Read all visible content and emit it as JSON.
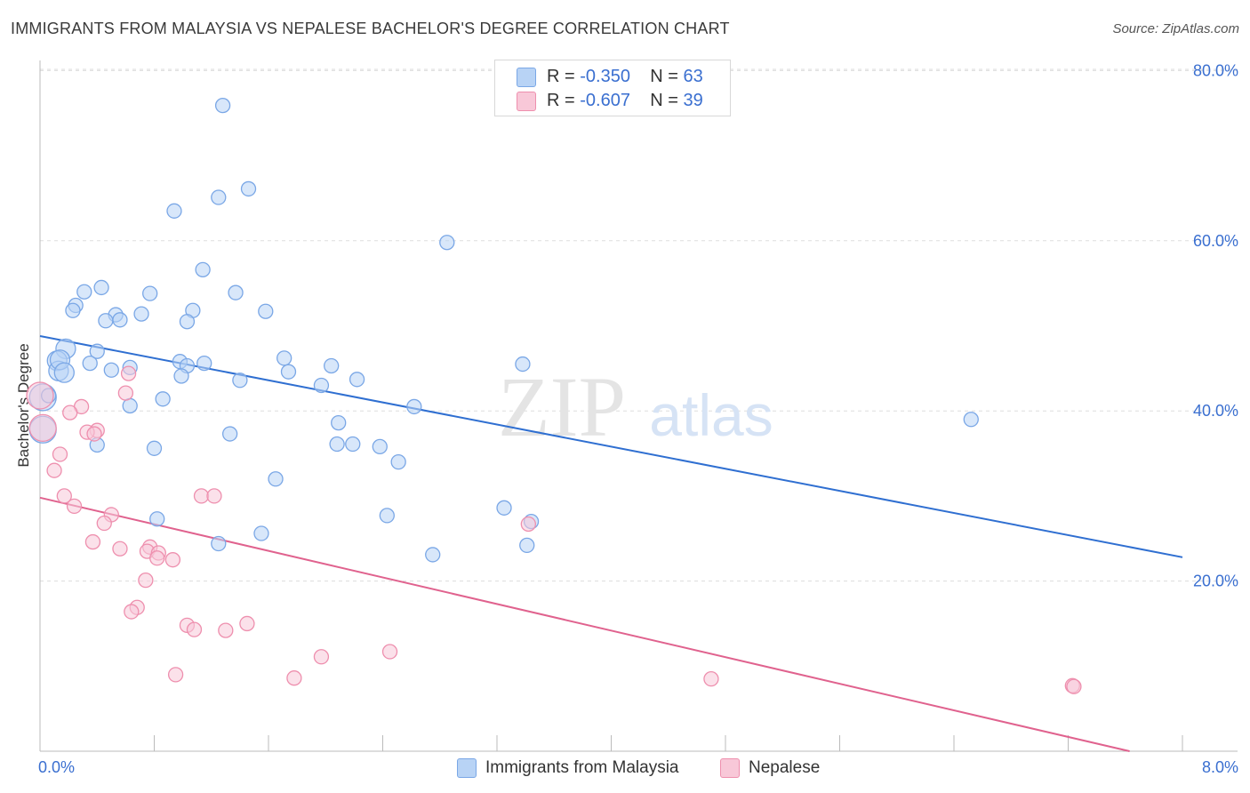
{
  "title": "IMMIGRANTS FROM MALAYSIA VS NEPALESE BACHELOR'S DEGREE CORRELATION CHART",
  "source": "Source: ZipAtlas.com",
  "watermark": {
    "zip": "ZIP",
    "atlas": "atlas"
  },
  "colors": {
    "blue_fill": "#b8d3f5",
    "blue_stroke": "#7aa7e6",
    "blue_line": "#2f6fd1",
    "pink_fill": "#f8c8d8",
    "pink_stroke": "#ee8fae",
    "pink_line": "#e0628e",
    "tick_label": "#3a6fd0",
    "grid": "#dddddd"
  },
  "legend_top": [
    {
      "r_label": "R = ",
      "r_value": "-0.350",
      "n_label": "N = ",
      "n_value": "63",
      "color": "#b8d3f5",
      "border": "#7aa7e6"
    },
    {
      "r_label": "R = ",
      "r_value": "-0.607",
      "n_label": "N = ",
      "n_value": "39",
      "color": "#f8c8d8",
      "border": "#ee8fae"
    }
  ],
  "legend_bottom": [
    {
      "label": "Immigrants from Malaysia",
      "color": "#b8d3f5",
      "border": "#7aa7e6"
    },
    {
      "label": "Nepalese",
      "color": "#f8c8d8",
      "border": "#ee8fae"
    }
  ],
  "chart_data": {
    "type": "scatter",
    "title": "IMMIGRANTS FROM MALAYSIA VS NEPALESE BACHELOR'S DEGREE CORRELATION CHART",
    "xlabel": "",
    "ylabel": "Bachelor's Degree",
    "xlim": [
      0,
      8.0
    ],
    "ylim": [
      0,
      80.0
    ],
    "x_tick_labels": [
      "0.0%",
      "8.0%"
    ],
    "y_ticks": [
      20,
      40,
      60,
      80
    ],
    "y_tick_labels": [
      "20.0%",
      "40.0%",
      "60.0%",
      "80.0%"
    ],
    "grid": true,
    "legend_position": "top-center",
    "series": [
      {
        "name": "Immigrants from Malaysia",
        "color": "#7aa7e6",
        "trend": {
          "x": [
            0,
            8.0
          ],
          "y": [
            48.8,
            22.8
          ]
        },
        "points": [
          [
            1.28,
            75.9
          ],
          [
            1.46,
            66.1
          ],
          [
            1.25,
            65.1
          ],
          [
            0.94,
            63.5
          ],
          [
            2.85,
            59.8
          ],
          [
            1.14,
            56.6
          ],
          [
            0.43,
            54.5
          ],
          [
            0.31,
            54.0
          ],
          [
            0.77,
            53.8
          ],
          [
            1.37,
            53.9
          ],
          [
            0.25,
            52.4
          ],
          [
            0.23,
            51.8
          ],
          [
            0.53,
            51.3
          ],
          [
            0.71,
            51.4
          ],
          [
            1.07,
            51.8
          ],
          [
            0.46,
            50.6
          ],
          [
            0.56,
            50.7
          ],
          [
            1.58,
            51.7
          ],
          [
            1.03,
            50.5
          ],
          [
            0.18,
            47.3
          ],
          [
            0.4,
            47.0
          ],
          [
            1.71,
            46.2
          ],
          [
            0.12,
            45.9
          ],
          [
            0.35,
            45.6
          ],
          [
            0.98,
            45.8
          ],
          [
            1.15,
            45.6
          ],
          [
            1.03,
            45.3
          ],
          [
            0.63,
            45.1
          ],
          [
            2.04,
            45.3
          ],
          [
            3.38,
            45.5
          ],
          [
            0.13,
            44.7
          ],
          [
            0.5,
            44.8
          ],
          [
            1.74,
            44.6
          ],
          [
            0.99,
            44.1
          ],
          [
            1.4,
            43.6
          ],
          [
            2.22,
            43.7
          ],
          [
            1.97,
            43.0
          ],
          [
            0.02,
            41.6
          ],
          [
            0.86,
            41.4
          ],
          [
            0.63,
            40.6
          ],
          [
            2.62,
            40.5
          ],
          [
            6.52,
            39.0
          ],
          [
            2.09,
            38.6
          ],
          [
            1.33,
            37.3
          ],
          [
            2.08,
            36.1
          ],
          [
            2.19,
            36.1
          ],
          [
            0.4,
            36.0
          ],
          [
            2.38,
            35.8
          ],
          [
            0.8,
            35.6
          ],
          [
            0.02,
            37.8
          ],
          [
            2.51,
            34.0
          ],
          [
            1.65,
            32.0
          ],
          [
            3.25,
            28.6
          ],
          [
            2.43,
            27.7
          ],
          [
            3.44,
            27.0
          ],
          [
            0.82,
            27.3
          ],
          [
            1.55,
            25.6
          ],
          [
            1.25,
            24.4
          ],
          [
            3.41,
            24.2
          ],
          [
            2.75,
            23.1
          ],
          [
            0.14,
            46.0
          ],
          [
            0.17,
            44.5
          ],
          [
            0.06,
            41.8
          ]
        ]
      },
      {
        "name": "Nepalese",
        "color": "#ee8fae",
        "trend": {
          "x": [
            0,
            7.63
          ],
          "y": [
            29.8,
            0
          ]
        },
        "points": [
          [
            0.0,
            41.8
          ],
          [
            0.02,
            38.0
          ],
          [
            0.62,
            44.4
          ],
          [
            0.6,
            42.1
          ],
          [
            0.29,
            40.5
          ],
          [
            0.21,
            39.8
          ],
          [
            0.4,
            37.7
          ],
          [
            0.33,
            37.5
          ],
          [
            0.38,
            37.3
          ],
          [
            0.14,
            34.9
          ],
          [
            0.1,
            33.0
          ],
          [
            0.17,
            30.0
          ],
          [
            1.13,
            30.0
          ],
          [
            1.22,
            30.0
          ],
          [
            0.24,
            28.8
          ],
          [
            0.5,
            27.8
          ],
          [
            0.45,
            26.8
          ],
          [
            3.42,
            26.7
          ],
          [
            0.37,
            24.6
          ],
          [
            0.56,
            23.8
          ],
          [
            0.77,
            24.0
          ],
          [
            0.75,
            23.5
          ],
          [
            0.83,
            23.3
          ],
          [
            0.82,
            22.7
          ],
          [
            0.93,
            22.5
          ],
          [
            0.74,
            20.1
          ],
          [
            0.68,
            16.9
          ],
          [
            0.64,
            16.4
          ],
          [
            1.03,
            14.8
          ],
          [
            1.08,
            14.3
          ],
          [
            1.45,
            15.0
          ],
          [
            1.3,
            14.2
          ],
          [
            2.45,
            11.7
          ],
          [
            1.97,
            11.1
          ],
          [
            0.95,
            9.0
          ],
          [
            1.78,
            8.6
          ],
          [
            4.7,
            8.5
          ],
          [
            7.23,
            7.7
          ],
          [
            7.24,
            7.6
          ]
        ]
      }
    ],
    "bubble_sizes_note": ""
  }
}
